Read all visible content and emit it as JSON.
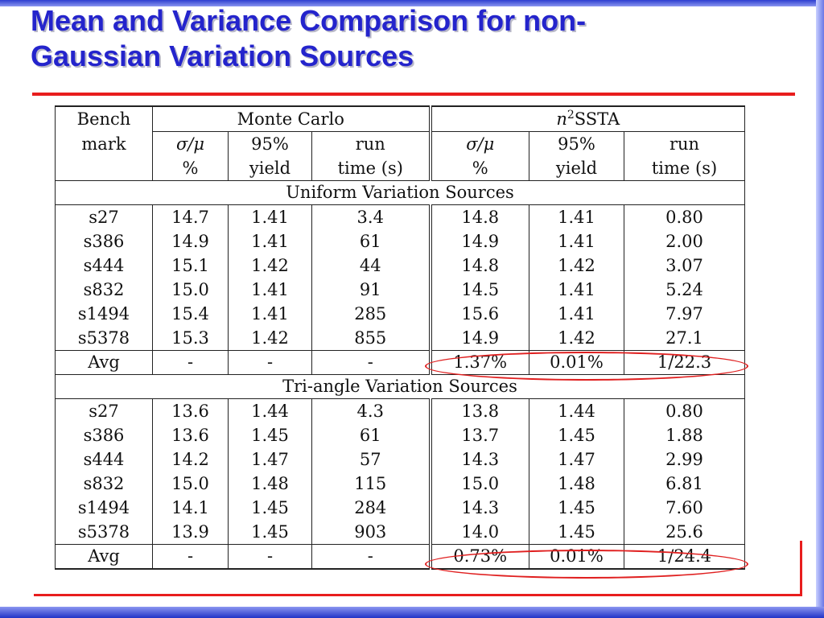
{
  "slide": {
    "title_line1": "Mean and Variance Comparison for non-",
    "title_line2": "Gaussian Variation Sources"
  },
  "table": {
    "col_bench_line1": "Bench",
    "col_bench_line2": "mark",
    "group_mc": "Monte Carlo",
    "group_ssta_n": "n",
    "group_ssta_sup": "2",
    "group_ssta_rest": "SSTA",
    "sub_sigma": "σ/μ",
    "sub_pct": "%",
    "sub_95": "95%",
    "sub_yield": "yield",
    "sub_run": "run",
    "sub_time": "time (s)",
    "sections": [
      {
        "title": "Uniform Variation Sources",
        "rows": [
          [
            "s27",
            "14.7",
            "1.41",
            "3.4",
            "14.8",
            "1.41",
            "0.80"
          ],
          [
            "s386",
            "14.9",
            "1.41",
            "61",
            "14.9",
            "1.41",
            "2.00"
          ],
          [
            "s444",
            "15.1",
            "1.42",
            "44",
            "14.8",
            "1.42",
            "3.07"
          ],
          [
            "s832",
            "15.0",
            "1.41",
            "91",
            "14.5",
            "1.41",
            "5.24"
          ],
          [
            "s1494",
            "15.4",
            "1.41",
            "285",
            "15.6",
            "1.41",
            "7.97"
          ],
          [
            "s5378",
            "15.3",
            "1.42",
            "855",
            "14.9",
            "1.42",
            "27.1"
          ]
        ],
        "avg": [
          "Avg",
          "-",
          "-",
          "-",
          "1.37%",
          "0.01%",
          "1/22.3"
        ]
      },
      {
        "title": "Tri-angle Variation Sources",
        "rows": [
          [
            "s27",
            "13.6",
            "1.44",
            "4.3",
            "13.8",
            "1.44",
            "0.80"
          ],
          [
            "s386",
            "13.6",
            "1.45",
            "61",
            "13.7",
            "1.45",
            "1.88"
          ],
          [
            "s444",
            "14.2",
            "1.47",
            "57",
            "14.3",
            "1.47",
            "2.99"
          ],
          [
            "s832",
            "15.0",
            "1.48",
            "115",
            "15.0",
            "1.48",
            "6.81"
          ],
          [
            "s1494",
            "14.1",
            "1.45",
            "284",
            "14.3",
            "1.45",
            "7.60"
          ],
          [
            "s5378",
            "13.9",
            "1.45",
            "903",
            "14.0",
            "1.45",
            "25.6"
          ]
        ],
        "avg": [
          "Avg",
          "-",
          "-",
          "-",
          "0.73%",
          "0.01%",
          "1/24.4"
        ]
      }
    ]
  },
  "colors": {
    "title": "#2424cc",
    "accent_rule": "#e81d1d",
    "highlight_ellipse": "#e02020",
    "frame_blue": "#2e3fd0"
  }
}
